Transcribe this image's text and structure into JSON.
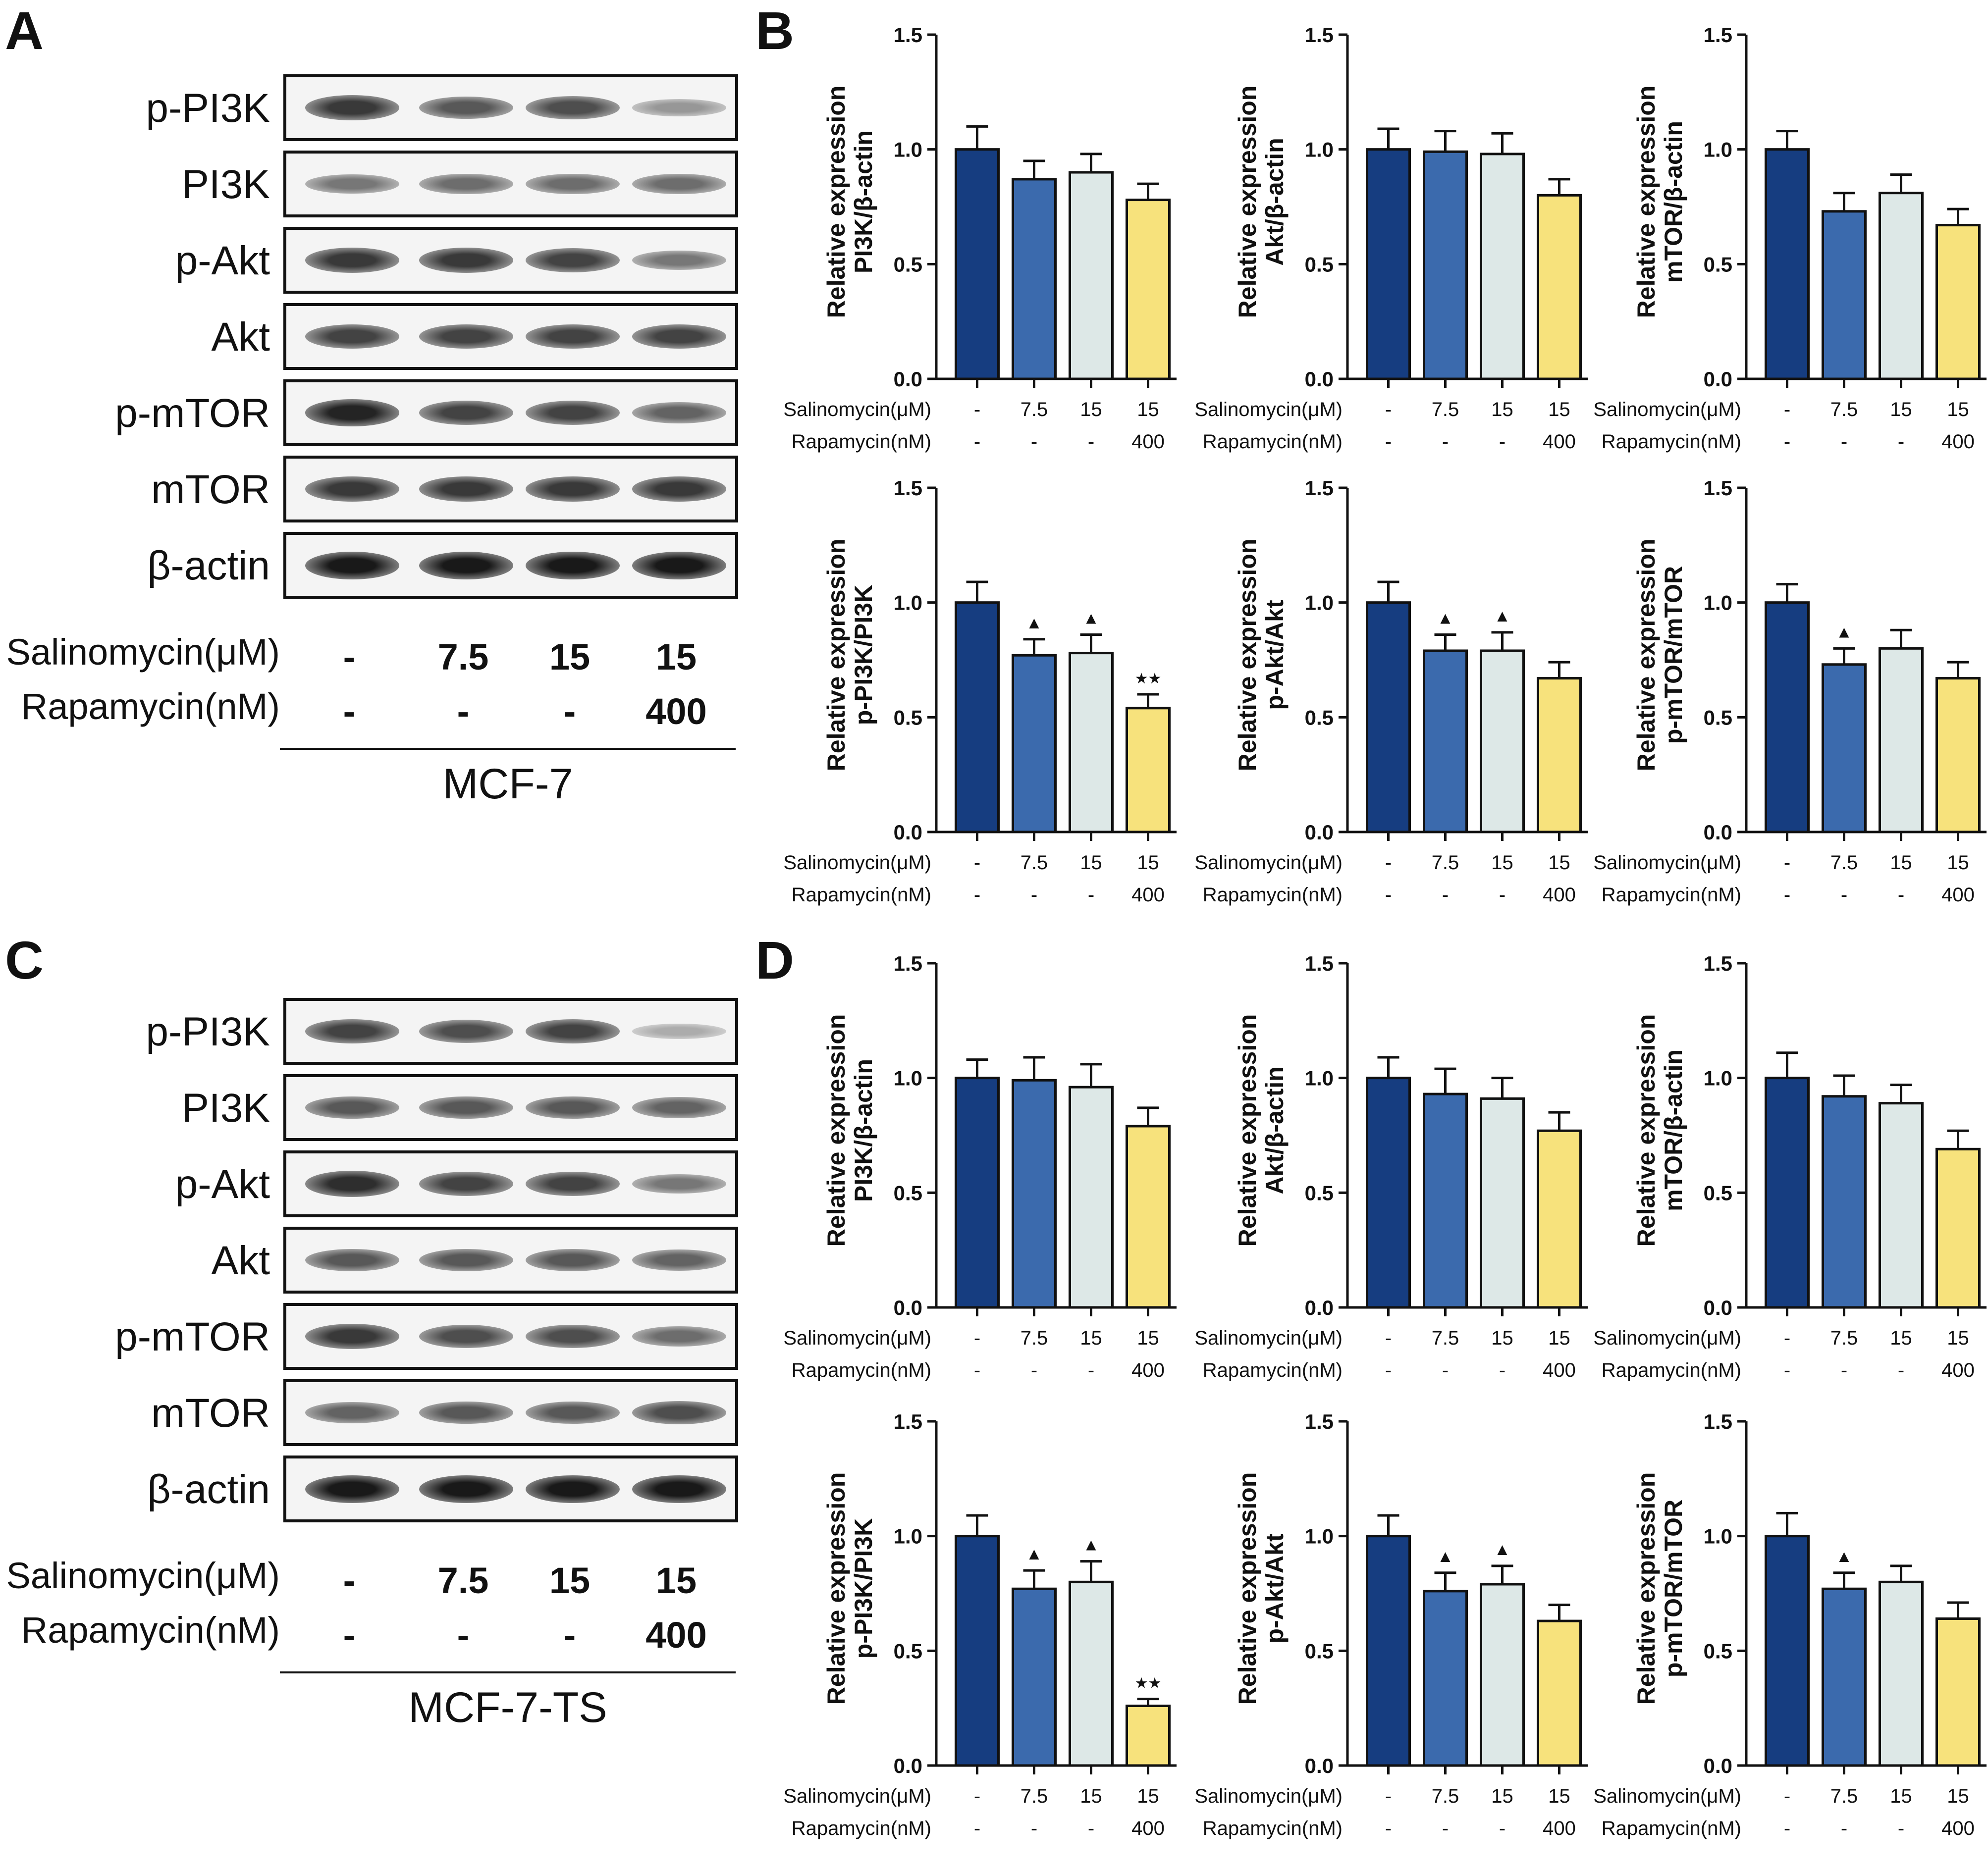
{
  "panels": {
    "A": "A",
    "B": "B",
    "C": "C",
    "D": "D"
  },
  "colors": {
    "bar1": "#163d80",
    "bar2": "#3b6aad",
    "bar3": "#dde8e7",
    "bar4": "#f7e27c",
    "axis": "#111111"
  },
  "blots": [
    {
      "cell_line": "MCF-7",
      "proteins": [
        "p-PI3K",
        "PI3K",
        "p-Akt",
        "Akt",
        "p-mTOR",
        "mTOR",
        "β-actin"
      ],
      "band_intensity": [
        [
          0.85,
          0.7,
          0.75,
          0.4
        ],
        [
          0.55,
          0.6,
          0.6,
          0.6
        ],
        [
          0.85,
          0.85,
          0.8,
          0.55
        ],
        [
          0.8,
          0.8,
          0.8,
          0.8
        ],
        [
          0.95,
          0.8,
          0.8,
          0.65
        ],
        [
          0.85,
          0.85,
          0.85,
          0.85
        ],
        [
          1.0,
          1.0,
          1.0,
          1.0
        ]
      ],
      "treatment_labels": [
        "Salinomycin(μM)",
        "Rapamycin(nM)"
      ],
      "salinomycin": [
        "-",
        "7.5",
        "15",
        "15"
      ],
      "rapamycin": [
        "-",
        "-",
        "-",
        "400"
      ]
    },
    {
      "cell_line": "MCF-7-TS",
      "proteins": [
        "p-PI3K",
        "PI3K",
        "p-Akt",
        "Akt",
        "p-mTOR",
        "mTOR",
        "β-actin"
      ],
      "band_intensity": [
        [
          0.8,
          0.75,
          0.8,
          0.3
        ],
        [
          0.7,
          0.7,
          0.7,
          0.65
        ],
        [
          0.9,
          0.8,
          0.8,
          0.55
        ],
        [
          0.7,
          0.7,
          0.7,
          0.65
        ],
        [
          0.85,
          0.75,
          0.75,
          0.6
        ],
        [
          0.65,
          0.7,
          0.7,
          0.75
        ],
        [
          1.0,
          1.0,
          1.0,
          1.0
        ]
      ],
      "treatment_labels": [
        "Salinomycin(μM)",
        "Rapamycin(nM)"
      ],
      "salinomycin": [
        "-",
        "7.5",
        "15",
        "15"
      ],
      "rapamycin": [
        "-",
        "-",
        "-",
        "400"
      ]
    }
  ],
  "chart_data": [
    {
      "panel": "B",
      "type": "bar",
      "ylabel": [
        "Relative expression",
        "PI3K/β-actin"
      ],
      "ylim": [
        0,
        1.5
      ],
      "yticks": [
        "0.0",
        "0.5",
        "1.0",
        "1.5"
      ],
      "categories": [
        "1",
        "2",
        "3",
        "4"
      ],
      "values": [
        1.0,
        0.87,
        0.9,
        0.78
      ],
      "errors": [
        0.1,
        0.08,
        0.08,
        0.07
      ],
      "marks": [
        "",
        "",
        "",
        ""
      ],
      "treatment_labels": [
        "Salinomycin(μM)",
        "Rapamycin(nM)"
      ],
      "salinomycin": [
        "-",
        "7.5",
        "15",
        "15"
      ],
      "rapamycin": [
        "-",
        "-",
        "-",
        "400"
      ]
    },
    {
      "panel": "B",
      "type": "bar",
      "ylabel": [
        "Relative expression",
        "Akt/β-actin"
      ],
      "ylim": [
        0,
        1.5
      ],
      "yticks": [
        "0.0",
        "0.5",
        "1.0",
        "1.5"
      ],
      "categories": [
        "1",
        "2",
        "3",
        "4"
      ],
      "values": [
        1.0,
        0.99,
        0.98,
        0.8
      ],
      "errors": [
        0.09,
        0.09,
        0.09,
        0.07
      ],
      "marks": [
        "",
        "",
        "",
        ""
      ],
      "treatment_labels": [
        "Salinomycin(μM)",
        "Rapamycin(nM)"
      ],
      "salinomycin": [
        "-",
        "7.5",
        "15",
        "15"
      ],
      "rapamycin": [
        "-",
        "-",
        "-",
        "400"
      ]
    },
    {
      "panel": "B",
      "type": "bar",
      "ylabel": [
        "Relative expression",
        "mTOR/β-actin"
      ],
      "ylim": [
        0,
        1.5
      ],
      "yticks": [
        "0.0",
        "0.5",
        "1.0",
        "1.5"
      ],
      "categories": [
        "1",
        "2",
        "3",
        "4"
      ],
      "values": [
        1.0,
        0.73,
        0.81,
        0.67
      ],
      "errors": [
        0.08,
        0.08,
        0.08,
        0.07
      ],
      "marks": [
        "",
        "",
        "",
        ""
      ],
      "treatment_labels": [
        "Salinomycin(μM)",
        "Rapamycin(nM)"
      ],
      "salinomycin": [
        "-",
        "7.5",
        "15",
        "15"
      ],
      "rapamycin": [
        "-",
        "-",
        "-",
        "400"
      ]
    },
    {
      "panel": "B",
      "type": "bar",
      "ylabel": [
        "Relative expression",
        "p-PI3K/PI3K"
      ],
      "ylim": [
        0,
        1.5
      ],
      "yticks": [
        "0.0",
        "0.5",
        "1.0",
        "1.5"
      ],
      "categories": [
        "1",
        "2",
        "3",
        "4"
      ],
      "values": [
        1.0,
        0.77,
        0.78,
        0.54
      ],
      "errors": [
        0.09,
        0.07,
        0.08,
        0.06
      ],
      "marks": [
        "",
        "▲",
        "▲",
        "★★"
      ],
      "treatment_labels": [
        "Salinomycin(μM)",
        "Rapamycin(nM)"
      ],
      "salinomycin": [
        "-",
        "7.5",
        "15",
        "15"
      ],
      "rapamycin": [
        "-",
        "-",
        "-",
        "400"
      ]
    },
    {
      "panel": "B",
      "type": "bar",
      "ylabel": [
        "Relative expression",
        "p-Akt/Akt"
      ],
      "ylim": [
        0,
        1.5
      ],
      "yticks": [
        "0.0",
        "0.5",
        "1.0",
        "1.5"
      ],
      "categories": [
        "1",
        "2",
        "3",
        "4"
      ],
      "values": [
        1.0,
        0.79,
        0.79,
        0.67
      ],
      "errors": [
        0.09,
        0.07,
        0.08,
        0.07
      ],
      "marks": [
        "",
        "▲",
        "▲",
        ""
      ],
      "treatment_labels": [
        "Salinomycin(μM)",
        "Rapamycin(nM)"
      ],
      "salinomycin": [
        "-",
        "7.5",
        "15",
        "15"
      ],
      "rapamycin": [
        "-",
        "-",
        "-",
        "400"
      ]
    },
    {
      "panel": "B",
      "type": "bar",
      "ylabel": [
        "Relative expression",
        "p-mTOR/mTOR"
      ],
      "ylim": [
        0,
        1.5
      ],
      "yticks": [
        "0.0",
        "0.5",
        "1.0",
        "1.5"
      ],
      "categories": [
        "1",
        "2",
        "3",
        "4"
      ],
      "values": [
        1.0,
        0.73,
        0.8,
        0.67
      ],
      "errors": [
        0.08,
        0.07,
        0.08,
        0.07
      ],
      "marks": [
        "",
        "▲",
        "",
        ""
      ],
      "treatment_labels": [
        "Salinomycin(μM)",
        "Rapamycin(nM)"
      ],
      "salinomycin": [
        "-",
        "7.5",
        "15",
        "15"
      ],
      "rapamycin": [
        "-",
        "-",
        "-",
        "400"
      ]
    },
    {
      "panel": "D",
      "type": "bar",
      "ylabel": [
        "Relative expression",
        "PI3K/β-actin"
      ],
      "ylim": [
        0,
        1.5
      ],
      "yticks": [
        "0.0",
        "0.5",
        "1.0",
        "1.5"
      ],
      "categories": [
        "1",
        "2",
        "3",
        "4"
      ],
      "values": [
        1.0,
        0.99,
        0.96,
        0.79
      ],
      "errors": [
        0.08,
        0.1,
        0.1,
        0.08
      ],
      "marks": [
        "",
        "",
        "",
        ""
      ],
      "treatment_labels": [
        "Salinomycin(μM)",
        "Rapamycin(nM)"
      ],
      "salinomycin": [
        "-",
        "7.5",
        "15",
        "15"
      ],
      "rapamycin": [
        "-",
        "-",
        "-",
        "400"
      ]
    },
    {
      "panel": "D",
      "type": "bar",
      "ylabel": [
        "Relative expression",
        "Akt/β-actin"
      ],
      "ylim": [
        0,
        1.5
      ],
      "yticks": [
        "0.0",
        "0.5",
        "1.0",
        "1.5"
      ],
      "categories": [
        "1",
        "2",
        "3",
        "4"
      ],
      "values": [
        1.0,
        0.93,
        0.91,
        0.77
      ],
      "errors": [
        0.09,
        0.11,
        0.09,
        0.08
      ],
      "marks": [
        "",
        "",
        "",
        ""
      ],
      "treatment_labels": [
        "Salinomycin(μM)",
        "Rapamycin(nM)"
      ],
      "salinomycin": [
        "-",
        "7.5",
        "15",
        "15"
      ],
      "rapamycin": [
        "-",
        "-",
        "-",
        "400"
      ]
    },
    {
      "panel": "D",
      "type": "bar",
      "ylabel": [
        "Relative expression",
        "mTOR/β-actin"
      ],
      "ylim": [
        0,
        1.5
      ],
      "yticks": [
        "0.0",
        "0.5",
        "1.0",
        "1.5"
      ],
      "categories": [
        "1",
        "2",
        "3",
        "4"
      ],
      "values": [
        1.0,
        0.92,
        0.89,
        0.69
      ],
      "errors": [
        0.11,
        0.09,
        0.08,
        0.08
      ],
      "marks": [
        "",
        "",
        "",
        ""
      ],
      "treatment_labels": [
        "Salinomycin(μM)",
        "Rapamycin(nM)"
      ],
      "salinomycin": [
        "-",
        "7.5",
        "15",
        "15"
      ],
      "rapamycin": [
        "-",
        "-",
        "-",
        "400"
      ]
    },
    {
      "panel": "D",
      "type": "bar",
      "ylabel": [
        "Relative expression",
        "p-PI3K/PI3K"
      ],
      "ylim": [
        0,
        1.5
      ],
      "yticks": [
        "0.0",
        "0.5",
        "1.0",
        "1.5"
      ],
      "categories": [
        "1",
        "2",
        "3",
        "4"
      ],
      "values": [
        1.0,
        0.77,
        0.8,
        0.26
      ],
      "errors": [
        0.09,
        0.08,
        0.09,
        0.03
      ],
      "marks": [
        "",
        "▲",
        "▲",
        "★★"
      ],
      "treatment_labels": [
        "Salinomycin(μM)",
        "Rapamycin(nM)"
      ],
      "salinomycin": [
        "-",
        "7.5",
        "15",
        "15"
      ],
      "rapamycin": [
        "-",
        "-",
        "-",
        "400"
      ]
    },
    {
      "panel": "D",
      "type": "bar",
      "ylabel": [
        "Relative expression",
        "p-Akt/Akt"
      ],
      "ylim": [
        0,
        1.5
      ],
      "yticks": [
        "0.0",
        "0.5",
        "1.0",
        "1.5"
      ],
      "categories": [
        "1",
        "2",
        "3",
        "4"
      ],
      "values": [
        1.0,
        0.76,
        0.79,
        0.63
      ],
      "errors": [
        0.09,
        0.08,
        0.08,
        0.07
      ],
      "marks": [
        "",
        "▲",
        "▲",
        ""
      ],
      "treatment_labels": [
        "Salinomycin(μM)",
        "Rapamycin(nM)"
      ],
      "salinomycin": [
        "-",
        "7.5",
        "15",
        "15"
      ],
      "rapamycin": [
        "-",
        "-",
        "-",
        "400"
      ]
    },
    {
      "panel": "D",
      "type": "bar",
      "ylabel": [
        "Relative expression",
        "p-mTOR/mTOR"
      ],
      "ylim": [
        0,
        1.5
      ],
      "yticks": [
        "0.0",
        "0.5",
        "1.0",
        "1.5"
      ],
      "categories": [
        "1",
        "2",
        "3",
        "4"
      ],
      "values": [
        1.0,
        0.77,
        0.8,
        0.64
      ],
      "errors": [
        0.1,
        0.07,
        0.07,
        0.07
      ],
      "marks": [
        "",
        "▲",
        "",
        ""
      ],
      "treatment_labels": [
        "Salinomycin(μM)",
        "Rapamycin(nM)"
      ],
      "salinomycin": [
        "-",
        "7.5",
        "15",
        "15"
      ],
      "rapamycin": [
        "-",
        "-",
        "-",
        "400"
      ]
    }
  ]
}
